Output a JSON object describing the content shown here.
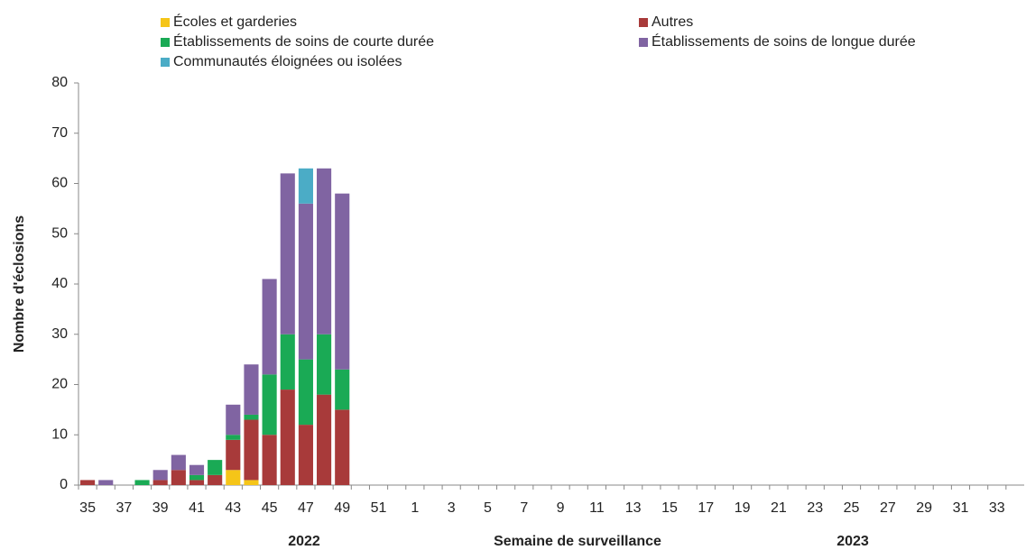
{
  "chart_data": {
    "type": "stacked_bar",
    "ylabel": "Nombre d'éclosions",
    "xlabel": "Semaine de surveillance",
    "year_labels": [
      "2022",
      "2023"
    ],
    "categories": [
      "35",
      null,
      "37",
      null,
      "39",
      null,
      "41",
      null,
      "43",
      null,
      "45",
      null,
      "47",
      null,
      "49",
      null,
      "51",
      null,
      "1",
      null,
      "3",
      null,
      "5",
      null,
      "7",
      null,
      "9",
      null,
      "11",
      null,
      "13",
      null,
      "15",
      null,
      "17",
      null,
      "19",
      null,
      "21",
      null,
      "23",
      null,
      "25",
      null,
      "27",
      null,
      "29",
      null,
      "31",
      null,
      "33",
      null
    ],
    "series": [
      {
        "name": "Écoles et garderies",
        "color": "#f5c518",
        "values": [
          0,
          0,
          0,
          0,
          0,
          0,
          0,
          0,
          3,
          1,
          0,
          0,
          0,
          0,
          0,
          0,
          0,
          0,
          0,
          0,
          0,
          0,
          0,
          0,
          0,
          0,
          0,
          0,
          0,
          0,
          0,
          0,
          0,
          0,
          0,
          0,
          0,
          0,
          0,
          0,
          0,
          0,
          0,
          0,
          0,
          0,
          0,
          0,
          0,
          0,
          0,
          0
        ]
      },
      {
        "name": "Autres",
        "color": "#a83a3a",
        "values": [
          1,
          0,
          0,
          0,
          1,
          3,
          1,
          2,
          6,
          12,
          10,
          19,
          12,
          18,
          15,
          0,
          0,
          0,
          0,
          0,
          0,
          0,
          0,
          0,
          0,
          0,
          0,
          0,
          0,
          0,
          0,
          0,
          0,
          0,
          0,
          0,
          0,
          0,
          0,
          0,
          0,
          0,
          0,
          0,
          0,
          0,
          0,
          0,
          0,
          0,
          0,
          0
        ]
      },
      {
        "name": "Établissements de soins de courte durée",
        "color": "#1aaa55",
        "values": [
          0,
          0,
          0,
          1,
          0,
          0,
          1,
          3,
          1,
          1,
          12,
          11,
          13,
          12,
          8,
          0,
          0,
          0,
          0,
          0,
          0,
          0,
          0,
          0,
          0,
          0,
          0,
          0,
          0,
          0,
          0,
          0,
          0,
          0,
          0,
          0,
          0,
          0,
          0,
          0,
          0,
          0,
          0,
          0,
          0,
          0,
          0,
          0,
          0,
          0,
          0,
          0
        ]
      },
      {
        "name": "Établissements de soins de longue durée",
        "color": "#8064a2",
        "values": [
          0,
          1,
          0,
          0,
          2,
          3,
          2,
          0,
          6,
          10,
          19,
          32,
          31,
          33,
          35,
          0,
          0,
          0,
          0,
          0,
          0,
          0,
          0,
          0,
          0,
          0,
          0,
          0,
          0,
          0,
          0,
          0,
          0,
          0,
          0,
          0,
          0,
          0,
          0,
          0,
          0,
          0,
          0,
          0,
          0,
          0,
          0,
          0,
          0,
          0,
          0,
          0
        ]
      },
      {
        "name": "Communautés éloignées ou isolées",
        "color": "#4bacc6",
        "values": [
          0,
          0,
          0,
          0,
          0,
          0,
          0,
          0,
          0,
          0,
          0,
          0,
          7,
          0,
          0,
          0,
          0,
          0,
          0,
          0,
          0,
          0,
          0,
          0,
          0,
          0,
          0,
          0,
          0,
          0,
          0,
          0,
          0,
          0,
          0,
          0,
          0,
          0,
          0,
          0,
          0,
          0,
          0,
          0,
          0,
          0,
          0,
          0,
          0,
          0,
          0,
          0
        ]
      }
    ],
    "ylim": [
      0,
      80
    ],
    "yticks": [
      0,
      10,
      20,
      30,
      40,
      50,
      60,
      70,
      80
    ]
  }
}
